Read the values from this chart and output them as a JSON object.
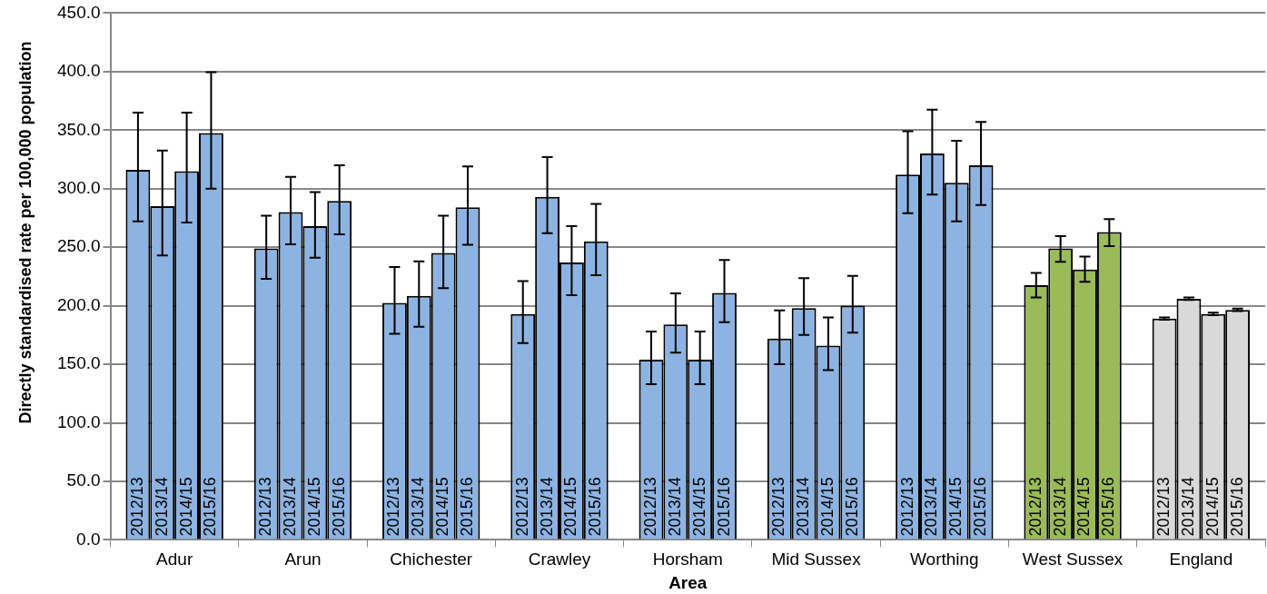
{
  "chart_data": {
    "type": "bar",
    "xlabel": "Area",
    "ylabel": "Directly standardised rate per 100,000 population",
    "categories": [
      "Adur",
      "Arun",
      "Chichester",
      "Crawley",
      "Horsham",
      "Mid Sussex",
      "Worthing",
      "West Sussex",
      "England"
    ],
    "series": [
      {
        "name": "2012/13",
        "colors": [
          "#8db3e2",
          "#8db3e2",
          "#8db3e2",
          "#8db3e2",
          "#8db3e2",
          "#8db3e2",
          "#8db3e2",
          "#9bbb59",
          "#d9d9d9"
        ],
        "values": [
          316,
          249,
          202.5,
          193,
          154,
          172,
          312,
          217.5,
          189
        ],
        "errors": [
          [
            272,
            365
          ],
          [
            223,
            277
          ],
          [
            176,
            233
          ],
          [
            168,
            221
          ],
          [
            133,
            178
          ],
          [
            150,
            196
          ],
          [
            279,
            349
          ],
          [
            207,
            228
          ],
          [
            188,
            190
          ]
        ]
      },
      {
        "name": "2013/14",
        "colors": [
          "#8db3e2",
          "#8db3e2",
          "#8db3e2",
          "#8db3e2",
          "#8db3e2",
          "#8db3e2",
          "#8db3e2",
          "#9bbb59",
          "#d9d9d9"
        ],
        "values": [
          285,
          280,
          208.5,
          293,
          184,
          198,
          330,
          249,
          206
        ],
        "errors": [
          [
            243,
            332.5
          ],
          [
            252.5,
            310
          ],
          [
            182,
            238
          ],
          [
            262,
            327
          ],
          [
            160,
            210.5
          ],
          [
            175,
            223.5
          ],
          [
            295,
            367.5
          ],
          [
            237.5,
            259.5
          ],
          [
            205,
            207
          ]
        ]
      },
      {
        "name": "2014/15",
        "colors": [
          "#8db3e2",
          "#8db3e2",
          "#8db3e2",
          "#8db3e2",
          "#8db3e2",
          "#8db3e2",
          "#8db3e2",
          "#9bbb59",
          "#d9d9d9"
        ],
        "values": [
          315,
          268,
          245,
          237,
          154,
          166,
          305,
          231,
          193
        ],
        "errors": [
          [
            271,
            365
          ],
          [
            241,
            297
          ],
          [
            215,
            277
          ],
          [
            209,
            268
          ],
          [
            133,
            178
          ],
          [
            145,
            190
          ],
          [
            272,
            341
          ],
          [
            220.5,
            242
          ],
          [
            192,
            194
          ]
        ]
      },
      {
        "name": "2015/16",
        "colors": [
          "#8db3e2",
          "#8db3e2",
          "#8db3e2",
          "#8db3e2",
          "#8db3e2",
          "#8db3e2",
          "#8db3e2",
          "#9bbb59",
          "#d9d9d9"
        ],
        "values": [
          347.5,
          289.5,
          284,
          255,
          211,
          200,
          320,
          263,
          196.5
        ],
        "errors": [
          [
            300,
            399.5
          ],
          [
            261,
            320
          ],
          [
            252,
            319
          ],
          [
            226,
            287
          ],
          [
            186,
            239
          ],
          [
            177,
            225.5
          ],
          [
            286,
            357
          ],
          [
            251,
            274
          ],
          [
            195.5,
            197.5
          ]
        ]
      }
    ],
    "ylim": [
      0,
      450
    ],
    "yticks": [
      {
        "value": 0,
        "label": "0.0"
      },
      {
        "value": 50,
        "label": "50.0"
      },
      {
        "value": 100,
        "label": "100.0"
      },
      {
        "value": 150,
        "label": "150.0"
      },
      {
        "value": 200,
        "label": "200.0"
      },
      {
        "value": 250,
        "label": "250.0"
      },
      {
        "value": 300,
        "label": "300.0"
      },
      {
        "value": 350,
        "label": "350.0"
      },
      {
        "value": 400,
        "label": "400.0"
      },
      {
        "value": 450,
        "label": "450.0"
      }
    ],
    "grid": "y",
    "legend": false
  }
}
